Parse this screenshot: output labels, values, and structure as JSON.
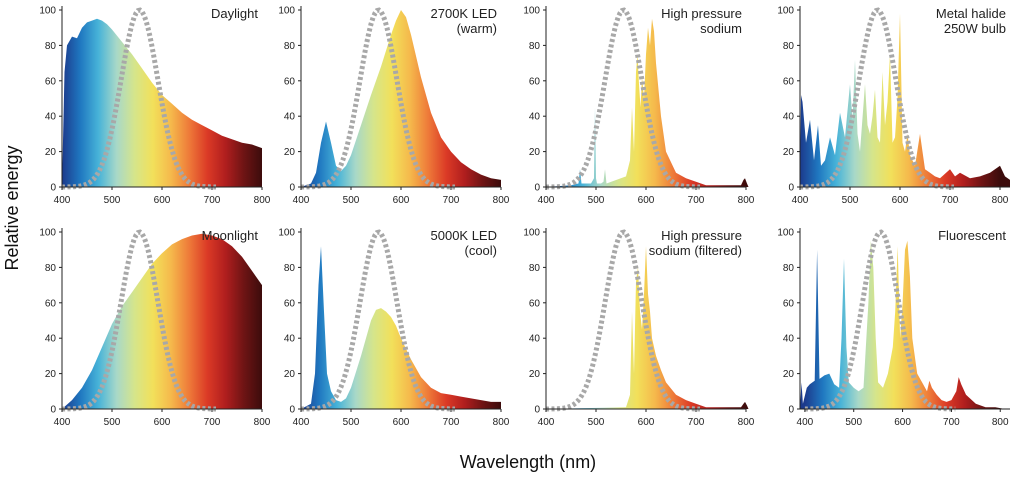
{
  "figure": {
    "ylabel": "Relative energy",
    "xlabel": "Wavelength (nm)"
  },
  "colors": {
    "eye_curve": "#a8a8a8",
    "spectrum": [
      "#1c3a8c",
      "#1f77c0",
      "#47b3d8",
      "#a8d8c8",
      "#d6e58a",
      "#f2e05a",
      "#f5b94c",
      "#ee7a39",
      "#db3a26",
      "#b01e1e",
      "#6e1414",
      "#3c0c0c"
    ]
  },
  "chart_data": [
    {
      "type": "area",
      "title": [
        "Daylight"
      ],
      "xlim": [
        400,
        800
      ],
      "ylim": [
        0,
        100
      ],
      "xticks": [
        400,
        500,
        600,
        700,
        800
      ],
      "yticks": [
        0,
        20,
        40,
        60,
        80,
        100
      ],
      "x": [
        400,
        405,
        410,
        420,
        430,
        440,
        450,
        460,
        470,
        480,
        490,
        500,
        520,
        540,
        560,
        580,
        600,
        620,
        640,
        660,
        680,
        700,
        720,
        740,
        760,
        780,
        800
      ],
      "values": [
        0,
        65,
        80,
        85,
        84,
        90,
        93,
        94,
        95,
        94,
        92,
        89,
        82,
        75,
        67,
        59,
        52,
        47,
        42,
        38,
        35,
        32,
        29,
        27,
        25,
        24,
        22
      ]
    },
    {
      "type": "area",
      "title": [
        "2700K LED",
        "(warm)"
      ],
      "xlim": [
        400,
        800
      ],
      "ylim": [
        0,
        100
      ],
      "xticks": [
        400,
        500,
        600,
        700,
        800
      ],
      "yticks": [
        0,
        20,
        40,
        60,
        80,
        100
      ],
      "x": [
        400,
        420,
        430,
        440,
        450,
        460,
        470,
        480,
        490,
        500,
        520,
        540,
        560,
        580,
        590,
        600,
        610,
        620,
        640,
        660,
        680,
        700,
        720,
        740,
        760,
        780,
        800
      ],
      "values": [
        0,
        2,
        8,
        25,
        37,
        25,
        12,
        9,
        12,
        18,
        35,
        52,
        68,
        86,
        94,
        100,
        96,
        86,
        62,
        42,
        28,
        20,
        14,
        10,
        7,
        5,
        4
      ]
    },
    {
      "type": "area",
      "title": [
        "High pressure",
        "sodium"
      ],
      "xlim": [
        400,
        800
      ],
      "ylim": [
        0,
        100
      ],
      "xticks": [
        400,
        500,
        600,
        700,
        800
      ],
      "yticks": [
        0,
        20,
        40,
        60,
        80,
        100
      ],
      "x": [
        400,
        450,
        465,
        468,
        471,
        490,
        496,
        498,
        500,
        502,
        510,
        515,
        518,
        521,
        560,
        568,
        572,
        576,
        580,
        583,
        586,
        589,
        592,
        596,
        600,
        604,
        608,
        612,
        616,
        620,
        630,
        640,
        660,
        680,
        700,
        720,
        790,
        795,
        798,
        802,
        805
      ],
      "values": [
        0,
        1,
        2,
        10,
        2,
        2,
        5,
        45,
        5,
        2,
        2,
        3,
        10,
        2,
        6,
        15,
        45,
        20,
        65,
        75,
        58,
        45,
        62,
        50,
        75,
        90,
        80,
        95,
        88,
        70,
        40,
        20,
        8,
        5,
        3,
        1,
        1,
        4,
        5,
        2,
        0
      ]
    },
    {
      "type": "area",
      "title": [
        "Metal halide",
        "250W  bulb"
      ],
      "xlim": [
        400,
        820
      ],
      "ylim": [
        0,
        100
      ],
      "xticks": [
        400,
        500,
        600,
        700,
        800
      ],
      "yticks": [
        0,
        20,
        40,
        60,
        80,
        100
      ],
      "x": [
        400,
        402,
        405,
        412,
        420,
        428,
        436,
        442,
        450,
        460,
        470,
        480,
        490,
        500,
        505,
        510,
        515,
        520,
        530,
        535,
        540,
        545,
        550,
        555,
        560,
        565,
        570,
        575,
        580,
        585,
        590,
        595,
        600,
        605,
        610,
        615,
        620,
        630,
        640,
        645,
        650,
        660,
        670,
        680,
        700,
        710,
        720,
        740,
        760,
        780,
        790,
        800,
        810,
        820
      ],
      "values": [
        0,
        52,
        48,
        25,
        38,
        15,
        35,
        12,
        15,
        28,
        18,
        42,
        28,
        58,
        38,
        72,
        30,
        20,
        58,
        35,
        30,
        40,
        55,
        28,
        25,
        65,
        35,
        48,
        75,
        25,
        28,
        50,
        98,
        25,
        20,
        30,
        18,
        12,
        30,
        20,
        10,
        8,
        6,
        5,
        10,
        6,
        8,
        5,
        6,
        8,
        10,
        12,
        6,
        4
      ]
    },
    {
      "type": "area",
      "title": [
        "Moonlight"
      ],
      "xlim": [
        400,
        800
      ],
      "ylim": [
        0,
        100
      ],
      "xticks": [
        400,
        500,
        600,
        700,
        800
      ],
      "yticks": [
        0,
        20,
        40,
        60,
        80,
        100
      ],
      "x": [
        400,
        420,
        440,
        460,
        480,
        500,
        520,
        540,
        560,
        580,
        600,
        620,
        640,
        660,
        680,
        700,
        720,
        740,
        760,
        780,
        800
      ],
      "values": [
        0,
        5,
        12,
        22,
        35,
        48,
        58,
        66,
        74,
        82,
        88,
        93,
        96,
        98,
        99,
        98,
        96,
        92,
        86,
        78,
        70
      ]
    },
    {
      "type": "area",
      "title": [
        "5000K LED",
        "(cool)"
      ],
      "xlim": [
        400,
        800
      ],
      "ylim": [
        0,
        100
      ],
      "xticks": [
        400,
        500,
        600,
        700,
        800
      ],
      "yticks": [
        0,
        20,
        40,
        60,
        80,
        100
      ],
      "x": [
        400,
        420,
        428,
        435,
        440,
        446,
        452,
        460,
        470,
        480,
        490,
        500,
        520,
        540,
        550,
        560,
        570,
        580,
        590,
        600,
        620,
        640,
        660,
        680,
        700,
        720,
        740,
        760,
        780,
        800
      ],
      "values": [
        0,
        3,
        20,
        70,
        92,
        55,
        20,
        10,
        5,
        4,
        6,
        12,
        30,
        50,
        56,
        57,
        55,
        52,
        47,
        40,
        28,
        18,
        12,
        9,
        8,
        7,
        6,
        5,
        4,
        4
      ]
    },
    {
      "type": "area",
      "title": [
        "High pressure",
        "sodium (filtered)"
      ],
      "xlim": [
        400,
        800
      ],
      "ylim": [
        0,
        100
      ],
      "xticks": [
        400,
        500,
        600,
        700,
        800
      ],
      "yticks": [
        0,
        20,
        40,
        60,
        80,
        100
      ],
      "x": [
        400,
        560,
        568,
        572,
        576,
        580,
        584,
        588,
        592,
        596,
        600,
        604,
        608,
        612,
        616,
        620,
        630,
        640,
        660,
        680,
        700,
        720,
        790,
        795,
        798,
        802,
        805
      ],
      "values": [
        0,
        1,
        8,
        55,
        20,
        72,
        80,
        55,
        45,
        65,
        92,
        65,
        55,
        40,
        35,
        30,
        22,
        15,
        8,
        5,
        3,
        1,
        1,
        3,
        4,
        2,
        0
      ]
    },
    {
      "type": "area",
      "title": [
        "Fluorescent"
      ],
      "xlim": [
        390,
        820
      ],
      "ylim": [
        0,
        100
      ],
      "xticks": [
        400,
        500,
        600,
        700,
        800
      ],
      "yticks": [
        0,
        20,
        40,
        60,
        80,
        100
      ],
      "x": [
        390,
        393,
        396,
        404,
        410,
        420,
        425,
        430,
        435,
        440,
        450,
        460,
        470,
        475,
        480,
        485,
        490,
        500,
        510,
        520,
        530,
        535,
        540,
        545,
        550,
        560,
        570,
        580,
        585,
        590,
        595,
        600,
        605,
        610,
        615,
        620,
        630,
        640,
        650,
        655,
        660,
        670,
        680,
        690,
        700,
        710,
        715,
        720,
        730,
        750,
        770,
        790,
        810,
        820
      ],
      "values": [
        0,
        15,
        3,
        12,
        14,
        16,
        90,
        17,
        18,
        19,
        20,
        14,
        12,
        40,
        85,
        35,
        15,
        12,
        10,
        12,
        60,
        95,
        80,
        40,
        15,
        12,
        20,
        35,
        55,
        92,
        40,
        60,
        90,
        95,
        75,
        40,
        20,
        15,
        10,
        16,
        12,
        8,
        5,
        4,
        5,
        10,
        18,
        14,
        8,
        3,
        1,
        1,
        0,
        0
      ]
    }
  ]
}
